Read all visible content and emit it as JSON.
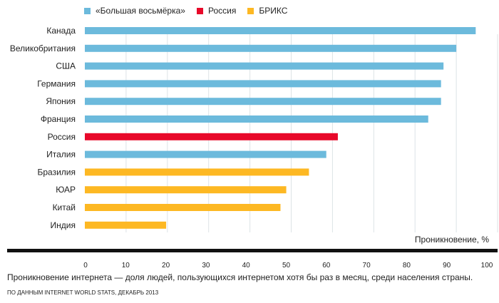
{
  "chart_data": {
    "type": "bar",
    "orientation": "horizontal",
    "categories": [
      "Канада",
      "Великобритания",
      "США",
      "Германия",
      "Япония",
      "Франция",
      "Россия",
      "Италия",
      "Бразилия",
      "ЮАР",
      "Китай",
      "Индия"
    ],
    "values": [
      94.7,
      90.0,
      86.9,
      86.3,
      86.3,
      83.2,
      61.3,
      58.5,
      54.3,
      48.8,
      47.4,
      19.7
    ],
    "groups": [
      "g8",
      "g8",
      "g8",
      "g8",
      "g8",
      "g8",
      "russia",
      "g8",
      "brics",
      "brics",
      "brics",
      "brics"
    ],
    "legend": [
      {
        "key": "g8",
        "name": "«Большая восьмёрка»",
        "color": "#6cbadc"
      },
      {
        "key": "russia",
        "name": "Россия",
        "color": "#e8092a"
      },
      {
        "key": "brics",
        "name": "БРИКС",
        "color": "#fdb823"
      }
    ],
    "legend_placement": "top-left",
    "xlabel": "Проникновение, %",
    "xlim": [
      0,
      100
    ],
    "xticks": [
      0,
      10,
      20,
      30,
      40,
      50,
      60,
      70,
      80,
      90,
      100
    ],
    "grid": "vertical"
  },
  "caption": "Проникновение интернета — доля людей, пользующихся интернетом хотя бы раз в месяц, среди населения страны.",
  "source": "По данным Internet World Stats, декабрь 2013"
}
